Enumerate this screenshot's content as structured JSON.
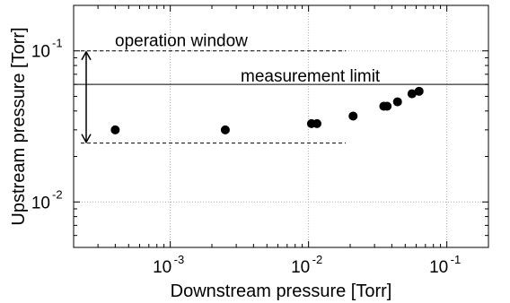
{
  "chart_data": {
    "type": "scatter",
    "title": "",
    "xlabel": "Downstream pressure [Torr]",
    "ylabel": "Upstream pressure [Torr]",
    "x_scale": "log",
    "y_scale": "log",
    "xlim": [
      0.0002,
      0.2
    ],
    "ylim": [
      0.005,
      0.2
    ],
    "grid": true,
    "x_ticks": [
      {
        "value": 0.001,
        "base": "10",
        "exp": "-3"
      },
      {
        "value": 0.01,
        "base": "10",
        "exp": "-2"
      },
      {
        "value": 0.1,
        "base": "10",
        "exp": "-1"
      }
    ],
    "y_ticks": [
      {
        "value": 0.01,
        "base": "10",
        "exp": "-2"
      },
      {
        "value": 0.1,
        "base": "10",
        "exp": "-1"
      }
    ],
    "series": [
      {
        "x": [
          0.0004,
          0.0025,
          0.0105,
          0.0115,
          0.021,
          0.035,
          0.037,
          0.044,
          0.056,
          0.063
        ],
        "y": [
          0.03,
          0.03,
          0.033,
          0.033,
          0.037,
          0.043,
          0.043,
          0.046,
          0.052,
          0.054
        ]
      }
    ],
    "reference_lines": {
      "measurement_limit": {
        "label": "measurement limit",
        "y": 0.06
      },
      "window_upper": {
        "y": 0.1
      },
      "window_lower": {
        "y": 0.0245
      }
    },
    "annotations": {
      "operation_window": "operation window"
    }
  }
}
